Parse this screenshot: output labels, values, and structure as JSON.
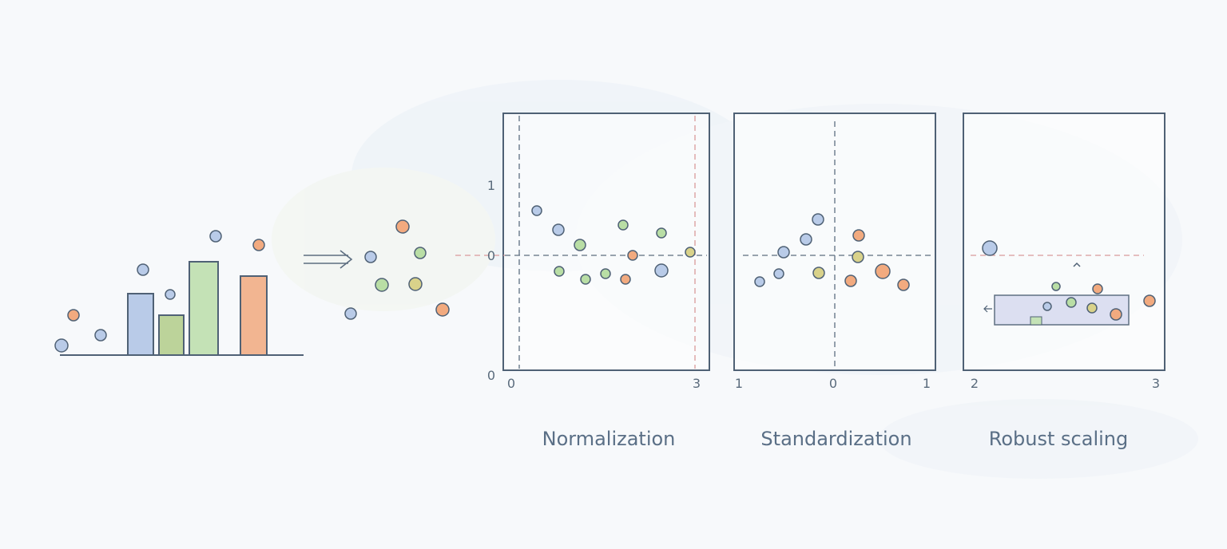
{
  "panels": [
    {
      "title": "Normalization",
      "tick_labels": [
        "1",
        "0",
        "0",
        "0",
        "3"
      ]
    },
    {
      "title": "Standardization",
      "tick_labels": [
        "1",
        "0",
        "1"
      ]
    },
    {
      "title": "Robust scaling",
      "tick_labels": [
        "2",
        "3"
      ]
    }
  ]
}
